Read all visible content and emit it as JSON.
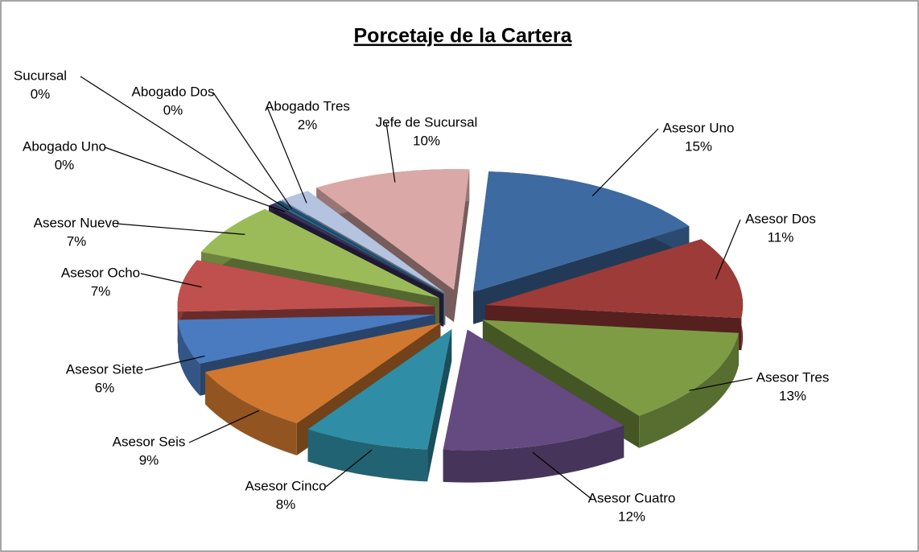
{
  "chart_data": {
    "type": "pie3d",
    "title": "Porcetaje de la Cartera",
    "categories": [
      "Asesor Uno",
      "Asesor Dos",
      "Asesor Tres",
      "Asesor Cuatro",
      "Asesor Cinco",
      "Asesor Seis",
      "Asesor Siete",
      "Asesor Ocho",
      "Asesor Nueve",
      "Abogado Uno",
      "Sucursal",
      "Abogado Dos",
      "Abogado Tres",
      "Jefe de Sucursal"
    ],
    "values": [
      15,
      11,
      13,
      12,
      8,
      9,
      6,
      7,
      7,
      0.4,
      0.2,
      0.3,
      2,
      10
    ],
    "value_labels": [
      "15%",
      "11%",
      "13%",
      "12%",
      "8%",
      "9%",
      "6%",
      "7%",
      "7%",
      "0%",
      "0%",
      "0%",
      "2%",
      "10%"
    ],
    "colors": [
      "#3d6aa0",
      "#9c3b38",
      "#7e9c44",
      "#654a81",
      "#2f8ea5",
      "#d0782f",
      "#4a7bc0",
      "#c0504d",
      "#9bbb59",
      "#3b2e5a",
      "#2a6f82",
      "#1f4e79",
      "#b3c3e0",
      "#d9a8a7"
    ]
  }
}
